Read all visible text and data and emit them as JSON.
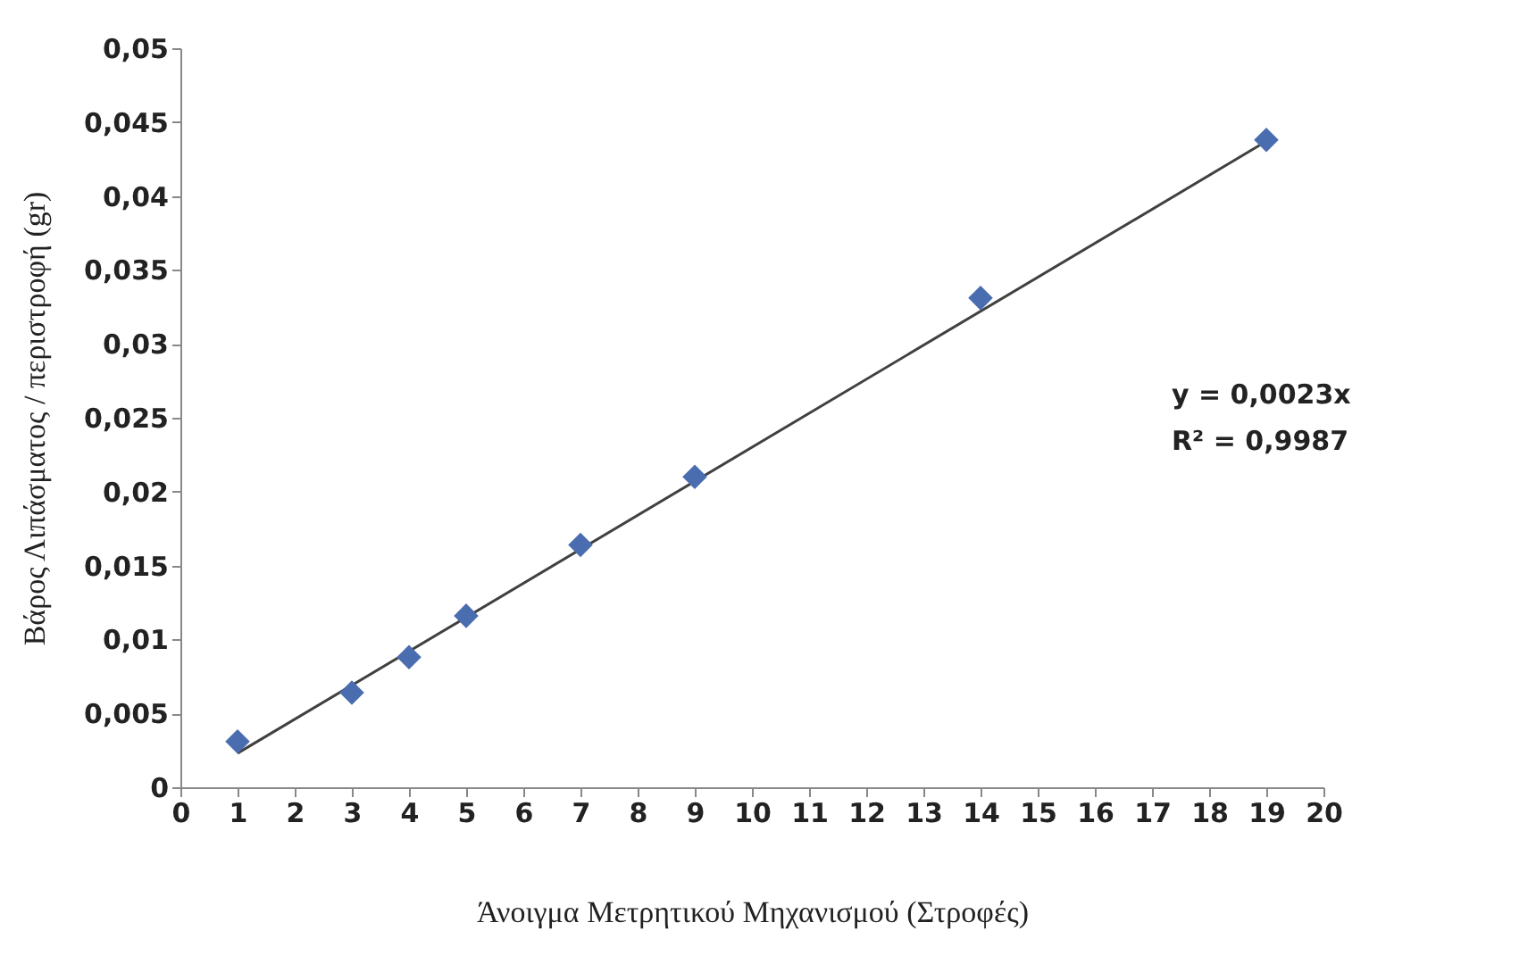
{
  "chart_data": {
    "type": "scatter",
    "xlabel": "Άνοιγμα Μετρητικού Μηχανισμού (Στροφές)",
    "ylabel": "Βάρος Λιπάσματος / περιστροφή (gr)",
    "x": [
      1,
      3,
      4,
      5,
      7,
      9,
      14,
      19
    ],
    "series": [
      {
        "color": "#4a6db0",
        "values": [
          0.0031,
          0.0064,
          0.0088,
          0.0116,
          0.0164,
          0.021,
          0.0331,
          0.0438
        ],
        "marker": "diamond"
      },
      {
        "type": "line",
        "color": "#404040",
        "x": [
          1,
          19
        ],
        "values": [
          0.0023,
          0.0437
        ]
      }
    ],
    "annotations": [
      "y = 0,0023x",
      "R² = 0,9987"
    ],
    "xlim": [
      0,
      20
    ],
    "xticks": [
      0,
      1,
      2,
      3,
      4,
      5,
      6,
      7,
      8,
      9,
      10,
      11,
      12,
      13,
      14,
      15,
      16,
      17,
      18,
      19,
      20
    ],
    "ylim": [
      0,
      0.05
    ],
    "yticks": [
      0,
      {
        "value": 0.005,
        "label": "0,005"
      },
      {
        "value": 0.01,
        "label": "0,01"
      },
      {
        "value": 0.015,
        "label": "0,015"
      },
      {
        "value": 0.02,
        "label": "0,02"
      },
      {
        "value": 0.025,
        "label": "0,025"
      },
      {
        "value": 0.03,
        "label": "0,03"
      },
      {
        "value": 0.035,
        "label": "0,035"
      },
      {
        "value": 0.04,
        "label": "0,04"
      },
      {
        "value": 0.045,
        "label": "0,045"
      },
      {
        "value": 0.05,
        "label": "0,05"
      }
    ],
    "grid": false
  }
}
